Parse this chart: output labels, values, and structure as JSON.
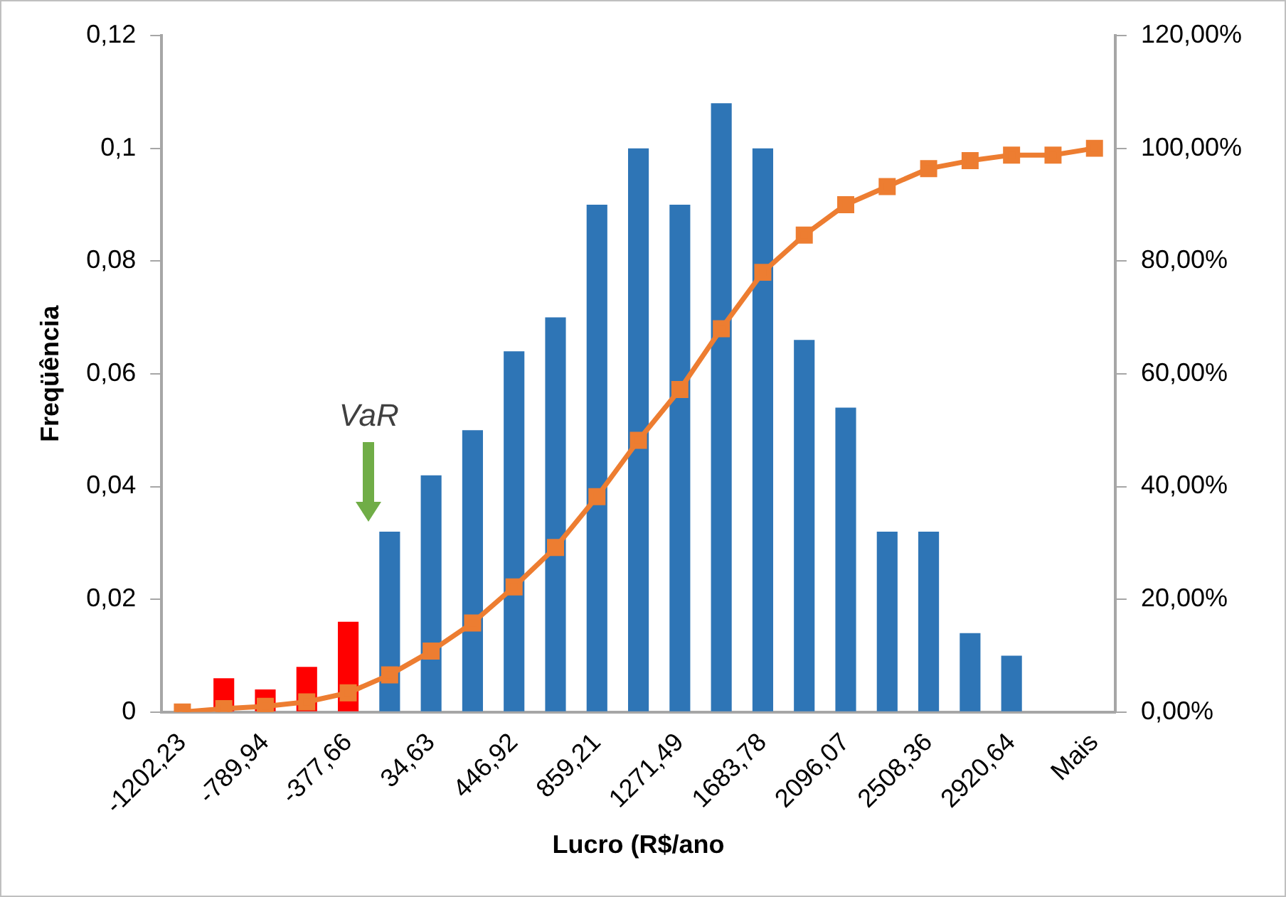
{
  "chart_data": {
    "type": "bar",
    "xlabel": "Lucro (R$/ano",
    "ylabel": "Freqüência",
    "categories": [
      "-1202,23",
      null,
      "-789,94",
      null,
      "-377,66",
      null,
      "34,63",
      null,
      "446,92",
      null,
      "859,21",
      null,
      "1271,49",
      null,
      "1683,78",
      null,
      "2096,07",
      null,
      "2508,36",
      null,
      "2920,64",
      null,
      "Mais"
    ],
    "series": [
      {
        "colors": [
          "#2e75b6",
          "#ff0000",
          "#ff0000",
          "#ff0000",
          "#ff0000",
          "#2e75b6",
          "#2e75b6",
          "#2e75b6",
          "#2e75b6",
          "#2e75b6",
          "#2e75b6",
          "#2e75b6",
          "#2e75b6",
          "#2e75b6",
          "#2e75b6",
          "#2e75b6",
          "#2e75b6",
          "#2e75b6",
          "#2e75b6",
          "#2e75b6",
          "#2e75b6",
          "#2e75b6",
          "#2e75b6"
        ],
        "values": [
          0,
          0.006,
          0.004,
          0.008,
          0.016,
          0.032,
          0.042,
          0.05,
          0.064,
          0.07,
          0.09,
          0.1,
          0.09,
          0.108,
          0.1,
          0.066,
          0.054,
          0.032,
          0.032,
          0.014,
          0.01,
          0,
          0
        ]
      },
      {
        "type": "line",
        "axis": "y2",
        "color": "#ed7d31",
        "values": [
          0,
          0.6,
          1.0,
          1.8,
          3.4,
          6.6,
          10.8,
          15.8,
          22.2,
          29.2,
          38.2,
          48.2,
          57.2,
          68.0,
          78.0,
          84.6,
          90.0,
          93.2,
          96.4,
          97.8,
          98.8,
          98.8,
          100
        ]
      }
    ],
    "ylim": [
      0,
      0.12
    ],
    "yticks": [
      0,
      {
        "value": 0.02,
        "label": "0,02"
      },
      {
        "value": 0.04,
        "label": "0,04"
      },
      {
        "value": 0.06,
        "label": "0,06"
      },
      {
        "value": 0.08,
        "label": "0,08"
      },
      {
        "value": 0.1,
        "label": "0,1"
      },
      {
        "value": 0.12,
        "label": "0,12"
      }
    ],
    "y2lim": [
      0,
      120
    ],
    "y2ticks": [
      {
        "value": 0,
        "label": "0,00%"
      },
      {
        "value": 20,
        "label": "20,00%"
      },
      {
        "value": 40,
        "label": "40,00%"
      },
      {
        "value": 60,
        "label": "60,00%"
      },
      {
        "value": 80,
        "label": "80,00%"
      },
      {
        "value": 100,
        "label": "100,00%"
      },
      {
        "value": 120,
        "label": "120,00%"
      }
    ],
    "annotations": [
      "VaR"
    ],
    "marker": "square",
    "line_style": "solid",
    "grid": false,
    "legend": false
  }
}
